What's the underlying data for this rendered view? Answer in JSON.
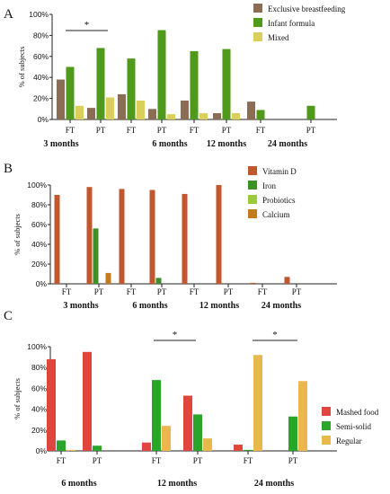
{
  "chart_data": [
    {
      "panel": "A",
      "type": "bar",
      "ylabel": "% of subjects",
      "ylim": [
        0,
        100
      ],
      "yticks": [
        "0%",
        "20%",
        "40%",
        "60%",
        "80%",
        "100%"
      ],
      "categories": [
        "FT",
        "PT",
        "FT",
        "PT",
        "FT",
        "PT",
        "FT",
        "PT"
      ],
      "groups": [
        "3 months",
        "6 months",
        "12 months",
        "24 months"
      ],
      "series": [
        {
          "name": "Exclusive breastfeeding",
          "color": "#8b6d55",
          "values": [
            38,
            11,
            24,
            10,
            18,
            6,
            17,
            0
          ]
        },
        {
          "name": "Infant formula",
          "color": "#4f9a1b",
          "values": [
            50,
            68,
            58,
            85,
            65,
            67,
            9,
            13
          ]
        },
        {
          "name": "Mixed",
          "color": "#d9cf5a",
          "values": [
            13,
            21,
            18,
            5,
            6,
            6,
            0,
            0
          ]
        }
      ],
      "annotations": [
        {
          "text": "*",
          "group": "3 months"
        }
      ],
      "legend_position": "top-right"
    },
    {
      "panel": "B",
      "type": "bar",
      "ylabel": "% of subjects",
      "ylim": [
        0,
        100
      ],
      "yticks": [
        "0%",
        "20%",
        "40%",
        "60%",
        "80%",
        "100%"
      ],
      "categories": [
        "FT",
        "PT",
        "FT",
        "PT",
        "FT",
        "PT",
        "FT",
        "PT"
      ],
      "groups": [
        "3 months",
        "6 months",
        "12 months",
        "24 months"
      ],
      "series": [
        {
          "name": "Vitamin D",
          "color": "#c1572f",
          "values": [
            90,
            98,
            96,
            95,
            91,
            100,
            1,
            7
          ]
        },
        {
          "name": "Iron",
          "color": "#3e8f2a",
          "values": [
            0,
            56,
            0,
            6,
            0,
            0,
            0,
            0
          ]
        },
        {
          "name": "Probiotics",
          "color": "#9bc93c",
          "values": [
            0,
            0,
            0,
            0,
            0,
            0,
            0,
            0
          ]
        },
        {
          "name": "Calcium",
          "color": "#c57a1c",
          "values": [
            0,
            11,
            0,
            0,
            0,
            0,
            0,
            0
          ]
        }
      ],
      "legend_position": "top-right"
    },
    {
      "panel": "C",
      "type": "bar",
      "ylabel": "% of subjects",
      "ylim": [
        0,
        100
      ],
      "yticks": [
        "0%",
        "20%",
        "40%",
        "60%",
        "80%",
        "100%"
      ],
      "categories": [
        "FT",
        "PT",
        "FT",
        "PT",
        "FT",
        "PT"
      ],
      "groups": [
        "6 months",
        "12 months",
        "24 months"
      ],
      "series": [
        {
          "name": "Mashed food",
          "color": "#e0463f",
          "values": [
            88,
            95,
            8,
            53,
            6,
            0
          ]
        },
        {
          "name": "Semi-solid",
          "color": "#2aa52a",
          "values": [
            10,
            5,
            68,
            35,
            1,
            33
          ]
        },
        {
          "name": "Regular",
          "color": "#e8b94a",
          "values": [
            1,
            0,
            24,
            12,
            92,
            67
          ]
        }
      ],
      "annotations": [
        {
          "text": "*",
          "group": "12 months"
        },
        {
          "text": "*",
          "group": "24 months"
        }
      ],
      "legend_position": "right"
    }
  ],
  "panel_letters": [
    "A",
    "B",
    "C"
  ]
}
